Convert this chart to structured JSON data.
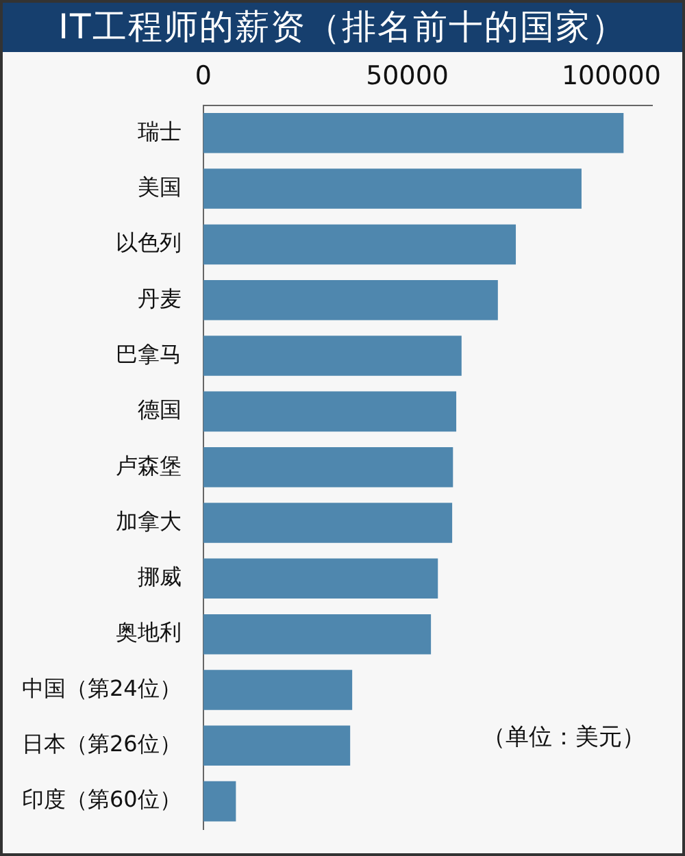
{
  "chart_data": {
    "type": "bar",
    "orientation": "horizontal",
    "title": "IT工程师的薪资（排名前十的国家）",
    "categories": [
      "瑞士",
      "美国",
      "以色列",
      "丹麦",
      "巴拿马",
      "德国",
      "卢森堡",
      "加拿大",
      "挪威",
      "奥地利",
      "中国（第24位）",
      "日本（第26位）",
      "印度（第60位）"
    ],
    "values": [
      103000,
      92700,
      76600,
      72200,
      63300,
      62000,
      61200,
      61000,
      57500,
      55800,
      36500,
      36000,
      8000
    ],
    "color": "#4f87ae",
    "xlim": [
      0,
      110000
    ],
    "xticks": [
      0,
      50000,
      100000
    ],
    "grid": false,
    "legend": false,
    "annotations": [
      "（单位：美元）"
    ]
  }
}
